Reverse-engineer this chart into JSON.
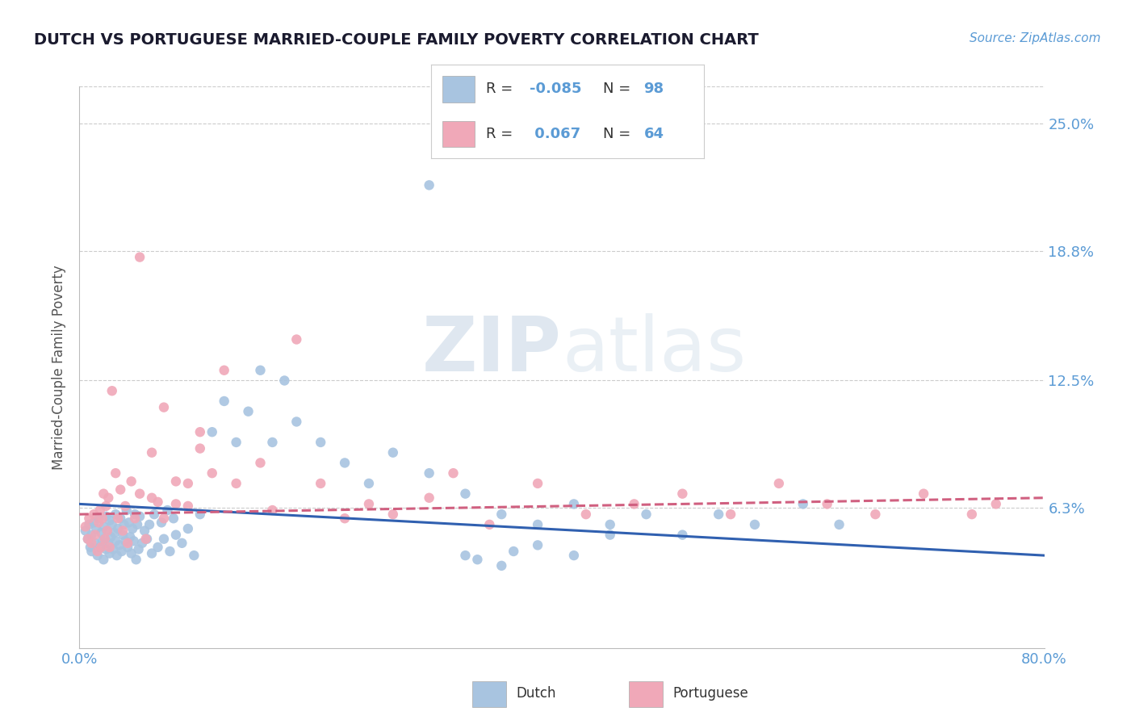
{
  "title": "DUTCH VS PORTUGUESE MARRIED-COUPLE FAMILY POVERTY CORRELATION CHART",
  "source": "Source: ZipAtlas.com",
  "ylabel": "Married-Couple Family Poverty",
  "xlim": [
    0.0,
    0.8
  ],
  "ylim": [
    -0.005,
    0.268
  ],
  "xticks": [
    0.0,
    0.8
  ],
  "xticklabels": [
    "0.0%",
    "80.0%"
  ],
  "yticks": [
    0.063,
    0.125,
    0.188,
    0.25
  ],
  "yticklabels": [
    "6.3%",
    "12.5%",
    "18.8%",
    "25.0%"
  ],
  "dutch_color": "#a8c4e0",
  "portuguese_color": "#f0a8b8",
  "dutch_line_color": "#3060b0",
  "portuguese_line_color": "#d06080",
  "grid_color": "#cccccc",
  "tick_color": "#5b9bd5",
  "watermark_color": "#c8d8ea",
  "background_color": "#ffffff",
  "dutch_scatter_x": [
    0.005,
    0.007,
    0.008,
    0.009,
    0.01,
    0.01,
    0.012,
    0.013,
    0.014,
    0.015,
    0.016,
    0.017,
    0.018,
    0.019,
    0.02,
    0.02,
    0.021,
    0.022,
    0.022,
    0.023,
    0.024,
    0.025,
    0.025,
    0.026,
    0.027,
    0.028,
    0.029,
    0.03,
    0.03,
    0.031,
    0.032,
    0.033,
    0.034,
    0.035,
    0.036,
    0.037,
    0.038,
    0.039,
    0.04,
    0.041,
    0.042,
    0.043,
    0.044,
    0.045,
    0.046,
    0.047,
    0.048,
    0.049,
    0.05,
    0.052,
    0.054,
    0.056,
    0.058,
    0.06,
    0.062,
    0.065,
    0.068,
    0.07,
    0.073,
    0.075,
    0.078,
    0.08,
    0.085,
    0.09,
    0.095,
    0.1,
    0.11,
    0.12,
    0.13,
    0.14,
    0.15,
    0.16,
    0.17,
    0.18,
    0.2,
    0.22,
    0.24,
    0.26,
    0.29,
    0.32,
    0.35,
    0.38,
    0.41,
    0.44,
    0.47,
    0.5,
    0.53,
    0.56,
    0.6,
    0.63,
    0.29,
    0.32,
    0.35,
    0.38,
    0.41,
    0.44,
    0.33,
    0.36
  ],
  "dutch_scatter_y": [
    0.052,
    0.048,
    0.055,
    0.044,
    0.05,
    0.042,
    0.056,
    0.046,
    0.053,
    0.04,
    0.058,
    0.044,
    0.051,
    0.047,
    0.054,
    0.038,
    0.048,
    0.059,
    0.043,
    0.052,
    0.046,
    0.057,
    0.041,
    0.049,
    0.055,
    0.043,
    0.051,
    0.047,
    0.06,
    0.04,
    0.053,
    0.045,
    0.058,
    0.042,
    0.05,
    0.055,
    0.047,
    0.062,
    0.044,
    0.056,
    0.049,
    0.041,
    0.053,
    0.047,
    0.06,
    0.038,
    0.055,
    0.043,
    0.059,
    0.046,
    0.052,
    0.048,
    0.055,
    0.041,
    0.06,
    0.044,
    0.056,
    0.048,
    0.062,
    0.042,
    0.058,
    0.05,
    0.046,
    0.053,
    0.04,
    0.06,
    0.1,
    0.115,
    0.095,
    0.11,
    0.13,
    0.095,
    0.125,
    0.105,
    0.095,
    0.085,
    0.075,
    0.09,
    0.08,
    0.07,
    0.06,
    0.055,
    0.065,
    0.055,
    0.06,
    0.05,
    0.06,
    0.055,
    0.065,
    0.055,
    0.22,
    0.04,
    0.035,
    0.045,
    0.04,
    0.05,
    0.038,
    0.042
  ],
  "portuguese_scatter_x": [
    0.005,
    0.007,
    0.008,
    0.01,
    0.012,
    0.013,
    0.015,
    0.016,
    0.017,
    0.018,
    0.019,
    0.02,
    0.021,
    0.022,
    0.023,
    0.024,
    0.025,
    0.027,
    0.03,
    0.032,
    0.034,
    0.036,
    0.038,
    0.04,
    0.043,
    0.046,
    0.05,
    0.055,
    0.06,
    0.065,
    0.07,
    0.08,
    0.09,
    0.1,
    0.11,
    0.12,
    0.13,
    0.15,
    0.16,
    0.18,
    0.2,
    0.22,
    0.24,
    0.26,
    0.29,
    0.31,
    0.34,
    0.38,
    0.42,
    0.46,
    0.5,
    0.54,
    0.58,
    0.62,
    0.66,
    0.7,
    0.74,
    0.76,
    0.05,
    0.06,
    0.07,
    0.08,
    0.09,
    0.1
  ],
  "portuguese_scatter_y": [
    0.054,
    0.048,
    0.058,
    0.046,
    0.06,
    0.05,
    0.042,
    0.056,
    0.062,
    0.044,
    0.058,
    0.07,
    0.048,
    0.064,
    0.052,
    0.068,
    0.044,
    0.12,
    0.08,
    0.058,
    0.072,
    0.052,
    0.064,
    0.046,
    0.076,
    0.058,
    0.07,
    0.048,
    0.09,
    0.066,
    0.112,
    0.065,
    0.075,
    0.1,
    0.08,
    0.13,
    0.075,
    0.085,
    0.062,
    0.145,
    0.075,
    0.058,
    0.065,
    0.06,
    0.068,
    0.08,
    0.055,
    0.075,
    0.06,
    0.065,
    0.07,
    0.06,
    0.075,
    0.065,
    0.06,
    0.07,
    0.06,
    0.065,
    0.185,
    0.068,
    0.058,
    0.076,
    0.064,
    0.092
  ]
}
